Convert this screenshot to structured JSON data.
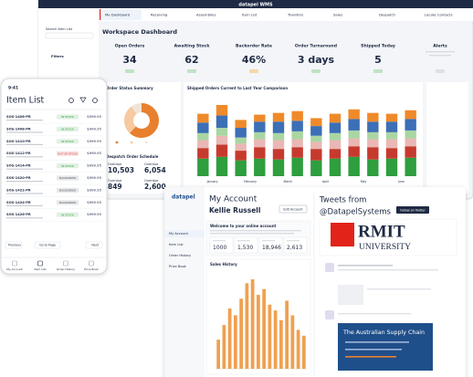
{
  "desktop": {
    "brand": "datapel WMS",
    "nav": [
      "My Dashboard",
      "Receiving",
      "Assemblies",
      "Item List",
      "Transfers",
      "Sales",
      "Despatch",
      "Locate Contacts"
    ],
    "sidebar": {
      "search": "Search Item List",
      "filters": "Filters"
    },
    "title": "Workspace Dashboard",
    "kpis": [
      {
        "label": "Open Orders",
        "value": "34",
        "badge_color": "#bfe3c4"
      },
      {
        "label": "Awaiting Stock",
        "value": "62",
        "badge_color": "#bfe3c4"
      },
      {
        "label": "Backorder Rate",
        "value": "46%",
        "badge_color": "#f6d7a8"
      },
      {
        "label": "Order Turnaround",
        "value": "3 days",
        "badge_color": "#bfe3c4"
      },
      {
        "label": "Shipped Today",
        "value": "5",
        "badge_color": "#bfe3c4"
      },
      {
        "label": "Alerts",
        "value": "",
        "badge_color": "#dde0e6"
      }
    ],
    "order_status": {
      "title": "Order Status Summary",
      "values": [
        62,
        28,
        10
      ],
      "colors": [
        "#e8802e",
        "#f6c9a0",
        "#efe4d8"
      ]
    },
    "despatch": {
      "title": "Despatch Order Schedule",
      "items": [
        {
          "label": "Overdue",
          "value": "10,503"
        },
        {
          "label": "Overdue",
          "value": "6,054"
        },
        {
          "label": "Overdue",
          "value": "849"
        },
        {
          "label": "Overdue",
          "value": "2,600"
        }
      ]
    },
    "shipped": {
      "title": "Shipped Orders Current to Last Year Comparison",
      "months": [
        "January",
        "February",
        "March",
        "April",
        "May",
        "June"
      ],
      "series": [
        {
          "color": "#2e9e3e",
          "values": [
            20,
            22,
            18,
            20,
            19,
            21,
            18,
            20,
            22,
            19,
            20,
            21
          ]
        },
        {
          "color": "#c63a2e",
          "values": [
            12,
            14,
            11,
            13,
            12,
            12,
            13,
            11,
            12,
            14,
            12,
            13
          ]
        },
        {
          "color": "#eab7b4",
          "values": [
            9,
            10,
            8,
            9,
            10,
            9,
            8,
            10,
            9,
            9,
            10,
            9
          ]
        },
        {
          "color": "#a9d6a3",
          "values": [
            8,
            9,
            7,
            8,
            8,
            9,
            7,
            8,
            9,
            8,
            8,
            9
          ]
        },
        {
          "color": "#3c6fb6",
          "values": [
            12,
            14,
            11,
            12,
            13,
            12,
            11,
            12,
            13,
            12,
            12,
            13
          ]
        },
        {
          "color": "#ef8a2a",
          "values": [
            10,
            12,
            9,
            8,
            10,
            11,
            9,
            10,
            11,
            10,
            9,
            10
          ]
        }
      ]
    }
  },
  "phone": {
    "time": "9:41",
    "title": "Item List",
    "rows": [
      {
        "code": "SOS-1406-PR",
        "status": "IN STOCK",
        "status_color": "#2e9e3e",
        "price": "$999.95"
      },
      {
        "code": "SOS-1408-PR",
        "status": "IN STOCK",
        "status_color": "#2e9e3e",
        "price": "$999.95"
      },
      {
        "code": "SOS-1410-PR",
        "status": "IN STOCK",
        "status_color": "#2e9e3e",
        "price": "$999.95"
      },
      {
        "code": "SOS-1412-PR",
        "status": "OUT OF STOCK",
        "status_color": "#d03b30",
        "price": "$999.95"
      },
      {
        "code": "SOS-1414-PR",
        "status": "IN STOCK",
        "status_color": "#2e9e3e",
        "price": "$999.95"
      },
      {
        "code": "SOS-1420-PR",
        "status": "BACKORDER",
        "status_color": "#555b66",
        "price": "$999.95"
      },
      {
        "code": "SOS-1422-PR",
        "status": "BACKORDER",
        "status_color": "#555b66",
        "price": "$999.95"
      },
      {
        "code": "SOS-1424-PR",
        "status": "BACKORDER",
        "status_color": "#555b66",
        "price": "$999.95"
      },
      {
        "code": "SOS-1426-PR",
        "status": "IN STOCK",
        "status_color": "#2e9e3e",
        "price": "$999.95"
      }
    ],
    "pagination": [
      "Previous",
      "Go to Page",
      "Next"
    ],
    "tabs": [
      "My Account",
      "Item List",
      "Order History",
      "Price Book"
    ]
  },
  "portal": {
    "logo": "datapel",
    "heading": "My Account",
    "user": "Kellie Russell",
    "button": "Edit Account",
    "menu": [
      "My Account",
      "Item List",
      "Order History",
      "Price Book"
    ],
    "welcome": "Welcome to your online account",
    "stats": [
      "1000",
      "1,530",
      "18,946",
      "2,613"
    ],
    "sales_title": "Sales History",
    "sales": [
      30,
      45,
      62,
      55,
      72,
      88,
      92,
      76,
      82,
      66,
      60,
      50,
      70,
      55,
      40,
      34
    ],
    "twitter": {
      "title": "Tweets from",
      "handle": "@DatapelSystems",
      "button": "Follow on Twitter",
      "image_title": "RMIT",
      "image_sub": "UNIVERSITY",
      "banner": "The Australian Supply Chain"
    }
  }
}
